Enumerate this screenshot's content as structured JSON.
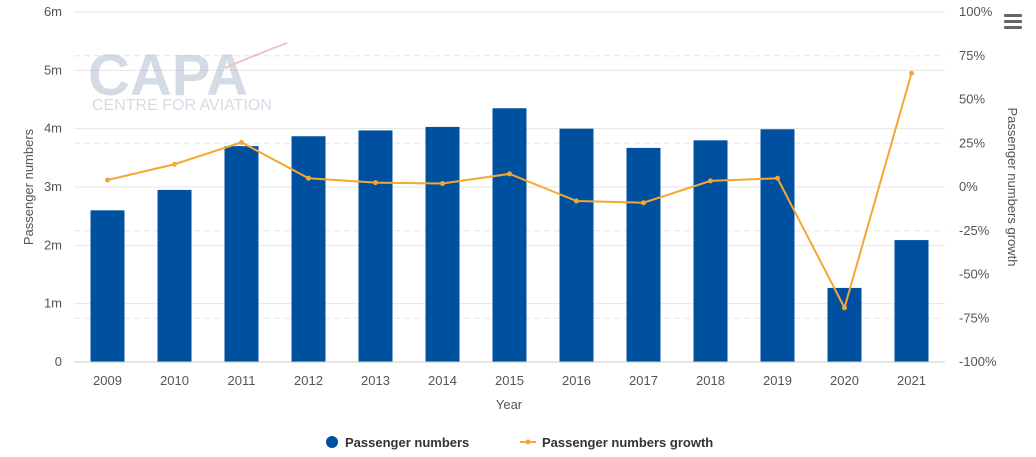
{
  "chart_data": {
    "type": "bar+line",
    "categories": [
      "2009",
      "2010",
      "2011",
      "2012",
      "2013",
      "2014",
      "2015",
      "2016",
      "2017",
      "2018",
      "2019",
      "2020",
      "2021"
    ],
    "series": [
      {
        "name": "Passenger numbers",
        "type": "bar",
        "axis": "left",
        "color": "#0050a0",
        "values": [
          2.6,
          2.95,
          3.7,
          3.87,
          3.97,
          4.03,
          4.35,
          4.0,
          3.67,
          3.8,
          3.99,
          1.27,
          2.09
        ]
      },
      {
        "name": "Passenger numbers growth",
        "type": "line",
        "axis": "right",
        "color": "#f5a733",
        "values": [
          4,
          13,
          25.5,
          5,
          2.5,
          2,
          7.5,
          -8,
          -9,
          3.5,
          5,
          -69,
          65
        ]
      }
    ],
    "xlabel": "Year",
    "ylabel": "Passenger numbers",
    "y2label": "Passenger numbers growth",
    "ylim": [
      0,
      6
    ],
    "y2lim": [
      -100,
      100
    ],
    "yticks": [
      "0",
      "1m",
      "2m",
      "3m",
      "4m",
      "5m",
      "6m"
    ],
    "y2ticks": [
      "-100%",
      "-75%",
      "-50%",
      "-25%",
      "0%",
      "25%",
      "50%",
      "75%",
      "100%"
    ],
    "grid": true,
    "legend_position": "bottom"
  },
  "watermark": {
    "logo_text": "CAPA",
    "sub_text": "CENTRE FOR AVIATION"
  },
  "menu_icon": "hamburger-menu-icon"
}
